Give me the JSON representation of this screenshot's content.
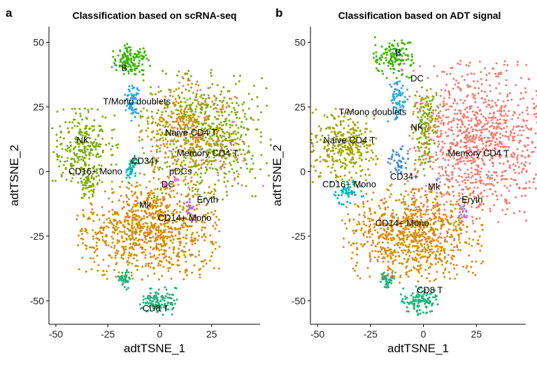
{
  "figure": {
    "panels": [
      {
        "letter": "a",
        "title": "Classification based on scRNA-seq"
      },
      {
        "letter": "b",
        "title": "Classification based on ADT signal"
      }
    ]
  },
  "colors": {
    "Memory CD4 T": "#F8766D",
    "Naive CD4 T": "#D89000",
    "CD14+ Mono": "#D88A00",
    "NK": "#7CAE00",
    "CD8 T": "#1FB47A",
    "CD16+ Mono": "#00B8C0",
    "T/Mono doublets": "#29A8E0",
    "CD34+": "#3A86F0",
    "Mk": "#9B8CFF",
    "B": "#39B500",
    "pDCs": "#E76BF3",
    "DC": "#FF62BC",
    "Eryth": "#B56AF0",
    "ADT_NaiveCD4T": "#A3A500",
    "ADT_CD14": "#DB8A0A"
  },
  "chart_data": [
    {
      "type": "scatter",
      "title": "Classification based on scRNA-seq",
      "xlabel": "adtTSNE_1",
      "ylabel": "adtTSNE_2",
      "xlim": [
        -52,
        47
      ],
      "ylim": [
        -58,
        55
      ],
      "xticks": [
        -50,
        -25,
        0,
        25
      ],
      "yticks": [
        -50,
        -25,
        0,
        25,
        50
      ],
      "grid": false,
      "clusters": [
        {
          "name": "B",
          "label": "B",
          "color": "#39B500",
          "cx": -14,
          "cy": 43,
          "rx": 6,
          "ry": 4,
          "n": 140,
          "lx": -17,
          "ly": 40
        },
        {
          "name": "T/Mono doublets",
          "label": "T/Mono doublets",
          "color": "#29A8E0",
          "cx": -13,
          "cy": 27,
          "rx": 2.5,
          "ry": 5,
          "n": 70,
          "lx": -11,
          "ly": 27
        },
        {
          "name": "NK",
          "label": "NK",
          "color": "#7CAE00",
          "cx": -36,
          "cy": 10,
          "rx": 10,
          "ry": 9,
          "n": 280,
          "lx": -37,
          "ly": 12
        },
        {
          "name": "NK2",
          "label": "",
          "color": "#7CAE00",
          "cx": -34,
          "cy": -5,
          "rx": 3,
          "ry": 4,
          "n": 50,
          "lx": 0,
          "ly": 0
        },
        {
          "name": "Memory CD4 T",
          "label": "Memory CD4 T",
          "color": "#7CAE00",
          "cx": 22,
          "cy": 14,
          "rx": 20,
          "ry": 16,
          "n": 650,
          "lx": 23,
          "ly": 7
        },
        {
          "name": "Memory CD4 T pink",
          "label": "",
          "color": "#F8766D",
          "cx": 20,
          "cy": 13,
          "rx": 19,
          "ry": 15,
          "n": 120,
          "lx": 0,
          "ly": 0
        },
        {
          "name": "Naive CD4 T",
          "label": "Naive CD4 T",
          "color": "#D89000",
          "cx": 12,
          "cy": 15,
          "rx": 14,
          "ry": 12,
          "n": 250,
          "lx": 15,
          "ly": 15
        },
        {
          "name": "CD16+ Mono",
          "label": "CD16+ Mono",
          "color": "#00B8C0",
          "cx": -14,
          "cy": 0,
          "rx": 2,
          "ry": 3,
          "n": 30,
          "lx": -31,
          "ly": 0
        },
        {
          "name": "CD34+",
          "label": "CD34+",
          "color": "#1FB47A",
          "cx": -12,
          "cy": 4,
          "rx": 1.5,
          "ry": 2,
          "n": 20,
          "lx": -7,
          "ly": 4
        },
        {
          "name": "pDCs",
          "label": "pDCs",
          "color": "#FF62BC",
          "cx": 8,
          "cy": -3,
          "rx": 1,
          "ry": 1,
          "n": 6,
          "lx": 10,
          "ly": 0
        },
        {
          "name": "DC",
          "label": "DC",
          "color": "#E76BF3",
          "cx": 3,
          "cy": -5,
          "rx": 1,
          "ry": 1,
          "n": 6,
          "lx": 4,
          "ly": -5
        },
        {
          "name": "Mk",
          "label": "Mk",
          "color": "#D88A00",
          "cx": -4,
          "cy": -12,
          "rx": 4,
          "ry": 3,
          "n": 40,
          "lx": -7,
          "ly": -13
        },
        {
          "name": "CD14+ Mono",
          "label": "CD14+ Mono",
          "color": "#D88A00",
          "cx": -5,
          "cy": -23,
          "rx": 22,
          "ry": 12,
          "n": 900,
          "lx": 12,
          "ly": -18
        },
        {
          "name": "Eryth",
          "label": "Eryth",
          "color": "#B56AF0",
          "cx": 15,
          "cy": -15,
          "rx": 1.5,
          "ry": 3,
          "n": 20,
          "lx": 23,
          "ly": -11
        },
        {
          "name": "CD8 T tail",
          "label": "",
          "color": "#1FB47A",
          "cx": -17,
          "cy": -42,
          "rx": 2,
          "ry": 2.5,
          "n": 40,
          "lx": 0,
          "ly": 0
        },
        {
          "name": "CD8 T",
          "label": "CD8 T",
          "color": "#1FB47A",
          "cx": -1,
          "cy": -50,
          "rx": 6,
          "ry": 3.5,
          "n": 120,
          "lx": -2,
          "ly": -53
        }
      ]
    },
    {
      "type": "scatter",
      "title": "Classification based on ADT signal",
      "xlabel": "adtTSNE_1",
      "ylabel": "adtTSNE_2",
      "xlim": [
        -52,
        47
      ],
      "ylim": [
        -58,
        55
      ],
      "xticks": [
        -50,
        -25,
        0,
        25
      ],
      "yticks": [
        -50,
        -25,
        0,
        25,
        50
      ],
      "grid": false,
      "clusters": [
        {
          "name": "B",
          "label": "B",
          "color": "#39B500",
          "cx": -14,
          "cy": 44,
          "rx": 6,
          "ry": 5,
          "n": 140,
          "lx": -12,
          "ly": 46
        },
        {
          "name": "DC",
          "label": "DC",
          "color": "#FF62BC",
          "cx": -10,
          "cy": 39,
          "rx": 0.8,
          "ry": 0.8,
          "n": 5,
          "lx": -3,
          "ly": 36
        },
        {
          "name": "T/Mono doublets",
          "label": "T/Mono doublets",
          "color": "#29A8E0",
          "cx": -12,
          "cy": 27,
          "rx": 3,
          "ry": 5,
          "n": 80,
          "lx": -24,
          "ly": 23
        },
        {
          "name": "NK",
          "label": "NK",
          "color": "#7CAE00",
          "cx": 1,
          "cy": 17,
          "rx": 4,
          "ry": 11,
          "n": 160,
          "lx": -3,
          "ly": 17
        },
        {
          "name": "Naive CD4 T",
          "label": "Naive CD4 T",
          "color": "#A3A500",
          "cx": -37,
          "cy": 10,
          "rx": 10,
          "ry": 9,
          "n": 320,
          "lx": -35,
          "ly": 12
        },
        {
          "name": "Memory CD4 T",
          "label": "Memory CD4 T",
          "color": "#F8766D",
          "cx": 26,
          "cy": 11,
          "rx": 21,
          "ry": 20,
          "n": 1000,
          "lx": 26,
          "ly": 7
        },
        {
          "name": "CD34+",
          "label": "CD34+",
          "color": "#3A86F0",
          "cx": -12,
          "cy": 4,
          "rx": 3,
          "ry": 4,
          "n": 45,
          "lx": -9,
          "ly": -2
        },
        {
          "name": "CD16+ Mono",
          "label": "CD16+ Mono",
          "color": "#00B8C0",
          "cx": -36,
          "cy": -8,
          "rx": 5,
          "ry": 3,
          "n": 60,
          "lx": -35,
          "ly": -5
        },
        {
          "name": "Mk",
          "label": "Mk",
          "color": "#9B8CFF",
          "cx": 7,
          "cy": -3,
          "rx": 1,
          "ry": 1,
          "n": 5,
          "lx": 5,
          "ly": -6
        },
        {
          "name": "CD14+ Mono",
          "label": "CD14+ Mono",
          "color": "#DB8A0A",
          "cx": -5,
          "cy": -24,
          "rx": 21,
          "ry": 12,
          "n": 900,
          "lx": -10,
          "ly": -20
        },
        {
          "name": "Eryth",
          "label": "Eryth",
          "color": "#B56AF0",
          "cx": 19,
          "cy": -15,
          "rx": 1.5,
          "ry": 3,
          "n": 20,
          "lx": 23,
          "ly": -11
        },
        {
          "name": "CD8 T tail",
          "label": "",
          "color": "#1FB47A",
          "cx": -17,
          "cy": -42,
          "rx": 2,
          "ry": 2.5,
          "n": 40,
          "lx": 0,
          "ly": 0
        },
        {
          "name": "CD8 T",
          "label": "CD8 T",
          "color": "#1FB47A",
          "cx": -1,
          "cy": -50,
          "rx": 6,
          "ry": 3.5,
          "n": 120,
          "lx": 3,
          "ly": -46
        }
      ]
    }
  ]
}
